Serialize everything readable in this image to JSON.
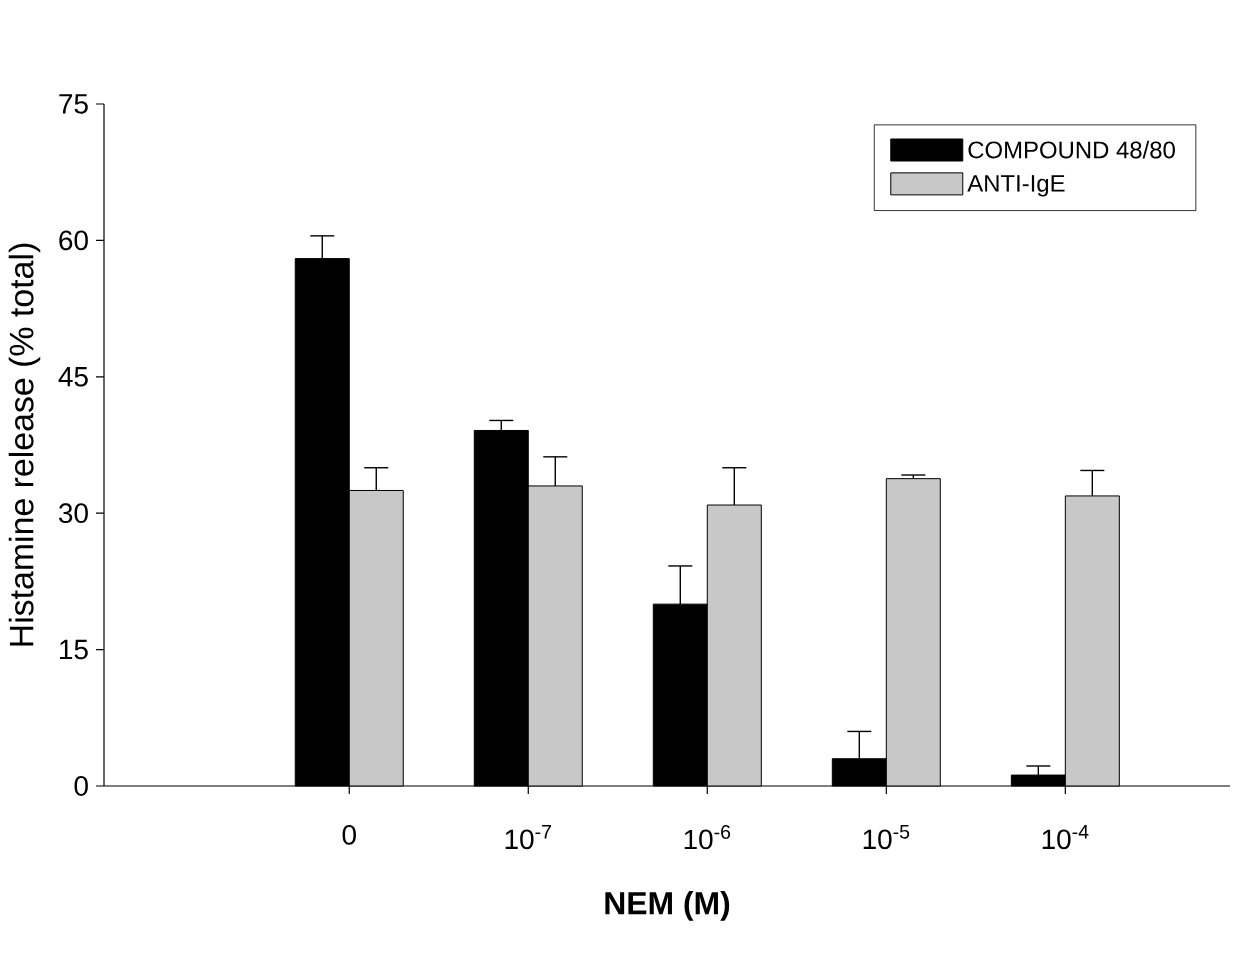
{
  "chart_data": {
    "type": "bar",
    "xlabel": "NEM (M)",
    "ylabel": "Histamine release (% total)",
    "categories": [
      "0",
      "10$^{-7}$",
      "10$^{-6}$",
      "10$^{-5}$",
      "10$^{-4}$"
    ],
    "series": [
      {
        "name": "COMPOUND 48/80",
        "color": "#000000",
        "values": [
          58.0,
          39.1,
          20.0,
          3.0,
          1.2
        ],
        "errors": [
          [
            58.0,
            60.5
          ],
          [
            39.1,
            40.2
          ],
          [
            20.0,
            24.2
          ],
          [
            3.0,
            6.0
          ],
          [
            1.2,
            2.2
          ]
        ]
      },
      {
        "name": "ANTI-IgE",
        "color": "#c8c8c8",
        "values": [
          32.5,
          33.0,
          30.9,
          33.8,
          31.9
        ],
        "errors": [
          [
            32.5,
            35.0
          ],
          [
            33.0,
            36.2
          ],
          [
            30.9,
            35.0
          ],
          [
            33.8,
            34.2
          ],
          [
            31.9,
            34.7
          ]
        ]
      }
    ],
    "ylim": [
      0,
      75
    ],
    "yticks": [
      0,
      15,
      30,
      45,
      60,
      75
    ],
    "grid": false,
    "legend": "top right"
  }
}
